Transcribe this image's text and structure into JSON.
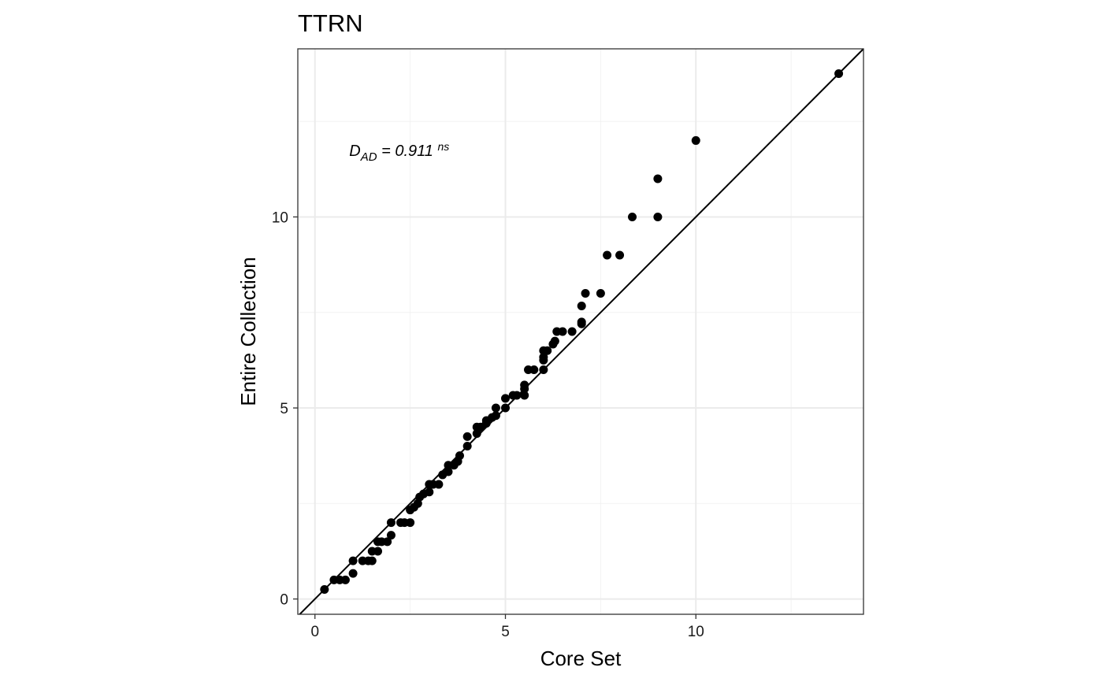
{
  "chart_data": {
    "type": "scatter",
    "title": "TTRN",
    "xlabel": "Core Set",
    "ylabel": "Entire Collection",
    "xlim": [
      -0.45,
      14.4
    ],
    "ylim": [
      -0.4,
      14.4
    ],
    "x_ticks": [
      0,
      5,
      10
    ],
    "y_ticks": [
      0,
      5,
      10
    ],
    "x_tick_labels": [
      "0",
      "5",
      "10"
    ],
    "y_tick_labels": [
      "0",
      "5",
      "10"
    ],
    "grid": true,
    "reference_line": "y = x",
    "annotation": {
      "base": "D",
      "sub": "AD",
      "mid": " = 0.911 ",
      "sup": "ns",
      "x": 0.9,
      "y": 11.6
    },
    "points": [
      [
        0.25,
        0.25
      ],
      [
        0.5,
        0.5
      ],
      [
        0.65,
        0.5
      ],
      [
        0.8,
        0.5
      ],
      [
        1.0,
        1.0
      ],
      [
        1.0,
        0.67
      ],
      [
        1.25,
        1.0
      ],
      [
        1.4,
        1.0
      ],
      [
        1.5,
        1.0
      ],
      [
        1.5,
        1.25
      ],
      [
        1.65,
        1.25
      ],
      [
        1.65,
        1.5
      ],
      [
        1.75,
        1.5
      ],
      [
        1.9,
        1.5
      ],
      [
        2.0,
        1.67
      ],
      [
        2.0,
        2.0
      ],
      [
        2.25,
        2.0
      ],
      [
        2.35,
        2.0
      ],
      [
        2.5,
        2.0
      ],
      [
        2.5,
        2.33
      ],
      [
        2.6,
        2.4
      ],
      [
        2.7,
        2.5
      ],
      [
        2.75,
        2.67
      ],
      [
        2.85,
        2.75
      ],
      [
        3.0,
        2.8
      ],
      [
        3.0,
        3.0
      ],
      [
        3.1,
        3.0
      ],
      [
        3.25,
        3.0
      ],
      [
        3.35,
        3.25
      ],
      [
        3.5,
        3.33
      ],
      [
        3.5,
        3.5
      ],
      [
        3.65,
        3.5
      ],
      [
        3.75,
        3.6
      ],
      [
        3.8,
        3.75
      ],
      [
        4.0,
        4.0
      ],
      [
        4.0,
        4.25
      ],
      [
        4.25,
        4.33
      ],
      [
        4.25,
        4.5
      ],
      [
        4.35,
        4.5
      ],
      [
        4.5,
        4.6
      ],
      [
        4.5,
        4.67
      ],
      [
        4.65,
        4.75
      ],
      [
        4.75,
        4.8
      ],
      [
        4.75,
        5.0
      ],
      [
        5.0,
        5.0
      ],
      [
        5.0,
        5.25
      ],
      [
        5.2,
        5.33
      ],
      [
        5.3,
        5.33
      ],
      [
        5.5,
        5.33
      ],
      [
        5.5,
        5.5
      ],
      [
        5.5,
        5.6
      ],
      [
        5.6,
        6.0
      ],
      [
        5.75,
        6.0
      ],
      [
        6.0,
        6.0
      ],
      [
        6.0,
        6.25
      ],
      [
        6.0,
        6.33
      ],
      [
        6.0,
        6.5
      ],
      [
        6.1,
        6.5
      ],
      [
        6.25,
        6.67
      ],
      [
        6.3,
        6.75
      ],
      [
        6.35,
        7.0
      ],
      [
        6.5,
        7.0
      ],
      [
        6.75,
        7.0
      ],
      [
        7.0,
        7.2
      ],
      [
        7.0,
        7.25
      ],
      [
        7.0,
        7.67
      ],
      [
        7.1,
        8.0
      ],
      [
        7.5,
        8.0
      ],
      [
        7.67,
        9.0
      ],
      [
        8.0,
        9.0
      ],
      [
        8.33,
        10.0
      ],
      [
        9.0,
        10.0
      ],
      [
        9.0,
        11.0
      ],
      [
        10.0,
        12.0
      ],
      [
        13.75,
        13.75
      ]
    ]
  }
}
